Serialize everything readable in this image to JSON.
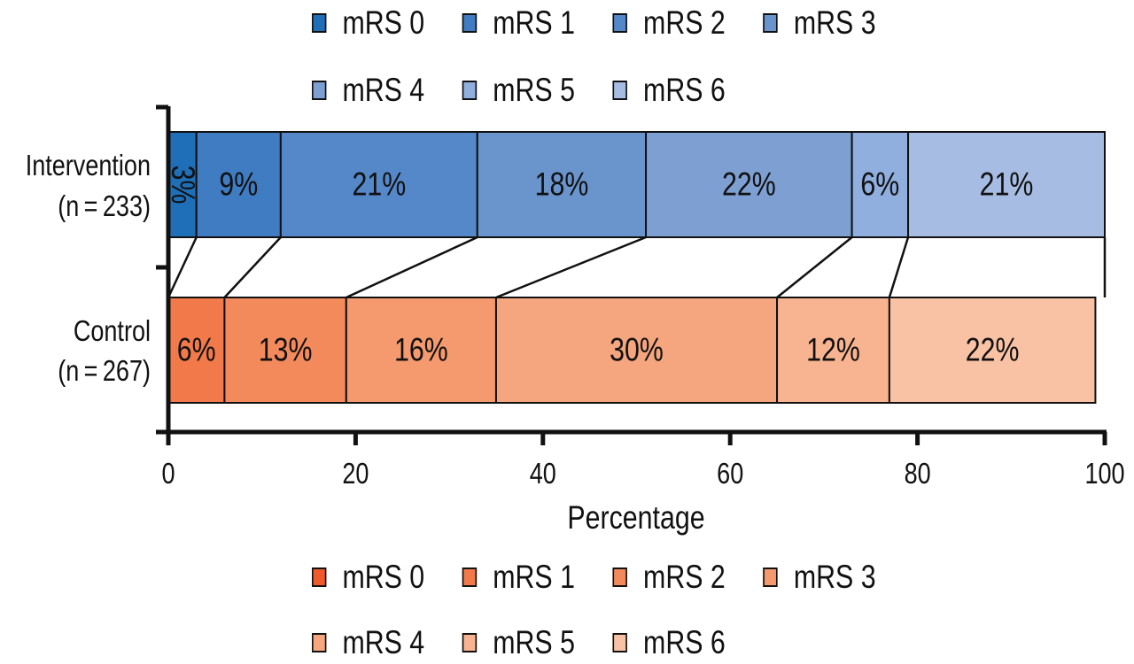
{
  "chart_data": {
    "type": "bar",
    "orientation": "horizontal",
    "stacked": true,
    "title": "",
    "xlabel": "Percentage",
    "ylabel": "",
    "xlim": [
      0,
      100
    ],
    "x_ticks": [
      "0",
      "20",
      "40",
      "60",
      "80",
      "100"
    ],
    "grid": false,
    "categories": [
      "mRS 0",
      "mRS 1",
      "mRS 2",
      "mRS 3",
      "mRS 4",
      "mRS 5",
      "mRS 6"
    ],
    "series": [
      {
        "name": "Intervention",
        "label_line1": "Intervention",
        "label_line2": "(n = 233)",
        "values": [
          3,
          9,
          21,
          18,
          22,
          6,
          21
        ],
        "labels": [
          "3%",
          "9%",
          "21%",
          "18%",
          "22%",
          "6%",
          "21%"
        ],
        "colors": [
          "#1f6fb8",
          "#3f7cc2",
          "#5588c8",
          "#6a94cc",
          "#7d9fd2",
          "#90aede",
          "#a6bce2"
        ]
      },
      {
        "name": "Control",
        "label_line1": "Control",
        "label_line2": "(n = 267)",
        "values": [
          0,
          6,
          13,
          16,
          30,
          12,
          22
        ],
        "labels": [
          "",
          "6%",
          "13%",
          "16%",
          "30%",
          "12%",
          "22%"
        ],
        "colors": [
          "#ef5a2a",
          "#f27a4a",
          "#f38a5c",
          "#f59a6f",
          "#f6a67f",
          "#f8b490",
          "#f9c2a5"
        ]
      }
    ],
    "legends": [
      {
        "placement": "top",
        "series": "Intervention"
      },
      {
        "placement": "bottom",
        "series": "Control"
      }
    ],
    "connectors": "lines join matching cumulative boundaries of the two bars"
  }
}
